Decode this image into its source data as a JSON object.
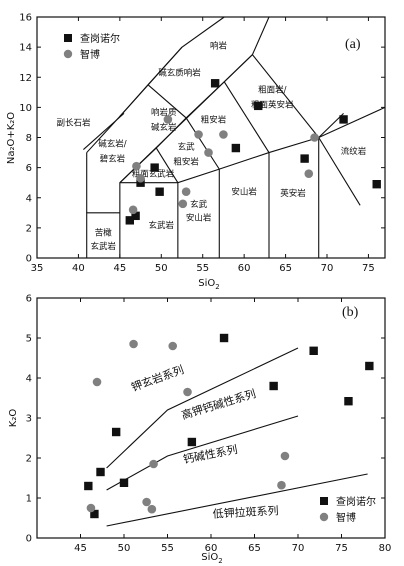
{
  "chart_data": [
    {
      "type": "scatter",
      "panel_label": "(a)",
      "xlabel": "SiO",
      "xlabel_sub": "2",
      "ylabel": "Na₂O+K₂O",
      "xlim": [
        35,
        77
      ],
      "ylim": [
        0,
        16
      ],
      "xticks": [
        35,
        40,
        45,
        50,
        55,
        60,
        65,
        70,
        75
      ],
      "yticks": [
        0,
        2,
        4,
        6,
        8,
        10,
        12,
        14,
        16
      ],
      "legend": {
        "placement": "top-left",
        "entries": [
          "查岗诺尔",
          "智博"
        ]
      },
      "series": [
        {
          "name": "查岗诺尔",
          "marker": "square",
          "points": [
            [
              46.2,
              2.5
            ],
            [
              46.9,
              2.8
            ],
            [
              47.5,
              5.0
            ],
            [
              49.2,
              6.0
            ],
            [
              49.8,
              4.4
            ],
            [
              56.5,
              11.6
            ],
            [
              59.0,
              7.3
            ],
            [
              61.7,
              10.1
            ],
            [
              67.3,
              6.6
            ],
            [
              72.0,
              9.2
            ],
            [
              76.0,
              4.9
            ]
          ]
        },
        {
          "name": "智博",
          "marker": "circle",
          "points": [
            [
              46.6,
              3.2
            ],
            [
              47.0,
              6.1
            ],
            [
              47.5,
              5.3
            ],
            [
              50.8,
              9.2
            ],
            [
              52.6,
              3.6
            ],
            [
              53.0,
              4.4
            ],
            [
              54.5,
              8.2
            ],
            [
              55.7,
              7.0
            ],
            [
              57.5,
              8.2
            ],
            [
              67.8,
              5.6
            ],
            [
              68.5,
              8.0
            ]
          ]
        }
      ],
      "field_labels": [
        "响岩",
        "碱玄质响岩",
        "粗面岩/粗面英安岩",
        "响岩质碱玄岩",
        "粗安岩",
        "副长石岩",
        "碱玄岩/碧玄岩",
        "粗面玄武岩",
        "玄武质粗安岩",
        "流纹岩",
        "英安岩",
        "安山岩",
        "玄武安山岩",
        "玄武岩",
        "苦橄玄武岩"
      ]
    },
    {
      "type": "scatter",
      "panel_label": "(b)",
      "xlabel": "SiO",
      "xlabel_sub": "2",
      "ylabel": "K₂O",
      "xlim": [
        40,
        80
      ],
      "ylim": [
        0,
        6
      ],
      "xticks": [
        45,
        50,
        55,
        60,
        65,
        70,
        75,
        80
      ],
      "yticks": [
        0,
        1,
        2,
        3,
        4,
        5,
        6
      ],
      "legend": {
        "placement": "bottom-right",
        "entries": [
          "查岗诺尔",
          "智博"
        ]
      },
      "series": [
        {
          "name": "查岗诺尔",
          "marker": "square",
          "points": [
            [
              45.9,
              1.3
            ],
            [
              46.6,
              0.6
            ],
            [
              47.3,
              1.65
            ],
            [
              49.1,
              2.65
            ],
            [
              50.0,
              1.38
            ],
            [
              57.8,
              2.4
            ],
            [
              61.5,
              5.0
            ],
            [
              67.2,
              3.8
            ],
            [
              71.8,
              4.68
            ],
            [
              75.8,
              3.42
            ],
            [
              78.2,
              4.3
            ]
          ]
        },
        {
          "name": "智博",
          "marker": "circle",
          "points": [
            [
              46.2,
              0.75
            ],
            [
              46.9,
              3.9
            ],
            [
              51.1,
              4.85
            ],
            [
              52.6,
              0.9
            ],
            [
              53.2,
              0.72
            ],
            [
              53.4,
              1.85
            ],
            [
              55.6,
              4.8
            ],
            [
              57.3,
              3.65
            ],
            [
              68.1,
              1.32
            ],
            [
              68.5,
              2.05
            ]
          ]
        }
      ],
      "series_labels": [
        "钾玄岩系列",
        "高钾钙碱性系列",
        "钙碱性系列",
        "低钾拉斑系列"
      ]
    }
  ]
}
